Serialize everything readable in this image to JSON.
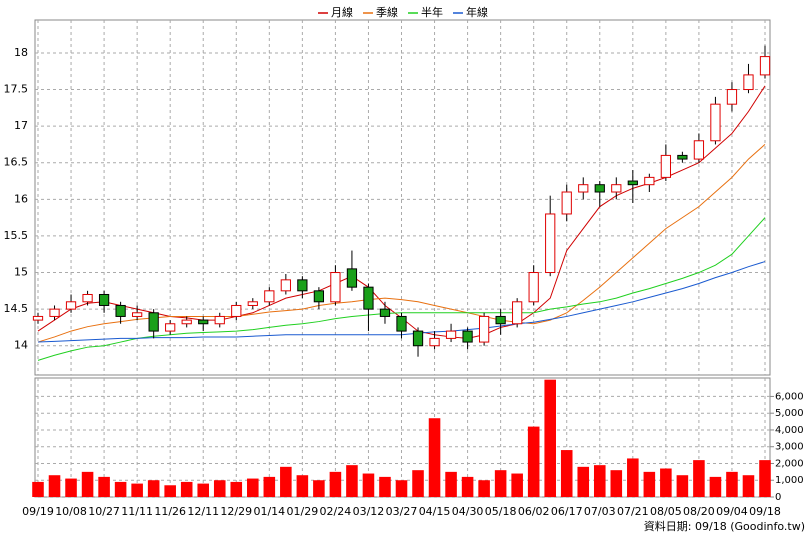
{
  "chart_data": {
    "type": "candlestick",
    "categories": [
      "09/19",
      null,
      "10/08",
      null,
      "10/27",
      null,
      "11/11",
      null,
      "11/26",
      null,
      "12/11",
      null,
      "12/29",
      null,
      "01/14",
      null,
      "01/29",
      null,
      "02/24",
      null,
      "03/12",
      null,
      "03/27",
      null,
      "04/15",
      null,
      "04/30",
      null,
      "05/18",
      null,
      "06/02",
      null,
      "06/17",
      null,
      "07/03",
      null,
      "07/21",
      null,
      "08/05",
      null,
      "08/20",
      null,
      "09/04",
      null,
      "09/18"
    ],
    "open": [
      14.35,
      14.4,
      14.5,
      14.6,
      14.7,
      14.55,
      14.4,
      14.45,
      14.2,
      14.3,
      14.35,
      14.3,
      14.4,
      14.55,
      14.6,
      14.75,
      14.9,
      14.75,
      14.6,
      15.05,
      14.8,
      14.5,
      14.4,
      14.2,
      14.0,
      14.1,
      14.2,
      14.05,
      14.4,
      14.3,
      14.6,
      15.0,
      15.8,
      16.1,
      16.2,
      16.1,
      16.25,
      16.2,
      16.3,
      16.6,
      16.55,
      16.8,
      17.3,
      17.5,
      17.7
    ],
    "high": [
      14.45,
      14.55,
      14.7,
      14.75,
      14.75,
      14.6,
      14.55,
      14.5,
      14.35,
      14.4,
      14.4,
      14.45,
      14.6,
      14.65,
      14.8,
      14.98,
      14.95,
      14.8,
      15.1,
      15.3,
      14.85,
      14.6,
      14.45,
      14.25,
      14.2,
      14.3,
      14.25,
      14.45,
      14.5,
      14.65,
      15.1,
      16.05,
      16.2,
      16.3,
      16.25,
      16.3,
      16.4,
      16.35,
      16.75,
      16.65,
      16.9,
      17.4,
      17.6,
      17.85,
      18.1
    ],
    "low": [
      14.3,
      14.35,
      14.45,
      14.55,
      14.45,
      14.3,
      14.35,
      14.1,
      14.15,
      14.25,
      14.2,
      14.25,
      14.35,
      14.5,
      14.55,
      14.7,
      14.65,
      14.5,
      14.55,
      14.75,
      14.2,
      14.3,
      14.1,
      13.85,
      13.95,
      14.05,
      13.95,
      14.0,
      14.15,
      14.25,
      14.55,
      14.95,
      15.7,
      16.0,
      15.9,
      16.0,
      15.95,
      16.1,
      16.25,
      16.5,
      16.5,
      16.75,
      17.2,
      17.45,
      17.65
    ],
    "close": [
      14.4,
      14.5,
      14.6,
      14.7,
      14.55,
      14.4,
      14.45,
      14.2,
      14.3,
      14.35,
      14.3,
      14.4,
      14.55,
      14.6,
      14.75,
      14.9,
      14.75,
      14.6,
      15.0,
      14.8,
      14.5,
      14.4,
      14.2,
      14.0,
      14.1,
      14.2,
      14.05,
      14.4,
      14.3,
      14.6,
      15.0,
      15.8,
      16.1,
      16.2,
      16.1,
      16.2,
      16.2,
      16.3,
      16.6,
      16.55,
      16.8,
      17.3,
      17.5,
      17.7,
      17.95
    ],
    "volume": [
      900,
      1300,
      1100,
      1500,
      1200,
      900,
      800,
      1000,
      700,
      900,
      800,
      1000,
      900,
      1100,
      1200,
      1800,
      1300,
      1000,
      1500,
      1900,
      1400,
      1200,
      1000,
      1600,
      4700,
      1500,
      1200,
      1000,
      1600,
      1400,
      4200,
      7000,
      2800,
      1800,
      1900,
      1600,
      2300,
      1500,
      1700,
      1300,
      2200,
      1200,
      1500,
      1300,
      2200
    ],
    "up_color": "#e00000",
    "down_color": "#1aa01a",
    "volume_color": "#ff0000",
    "moving_averages": [
      {
        "name": "月線",
        "color": "#d00000",
        "values": [
          14.2,
          14.35,
          14.5,
          14.58,
          14.6,
          14.55,
          14.5,
          14.45,
          14.4,
          14.38,
          14.35,
          14.35,
          14.4,
          14.45,
          14.55,
          14.65,
          14.7,
          14.75,
          14.85,
          14.95,
          14.8,
          14.55,
          14.38,
          14.2,
          14.15,
          14.12,
          14.1,
          14.15,
          14.25,
          14.3,
          14.45,
          14.65,
          15.3,
          15.6,
          15.9,
          16.05,
          16.15,
          16.22,
          16.3,
          16.4,
          16.5,
          16.7,
          16.9,
          17.2,
          17.55
        ]
      },
      {
        "name": "季線",
        "color": "#e87010",
        "values": [
          14.05,
          14.12,
          14.2,
          14.26,
          14.3,
          14.33,
          14.36,
          14.38,
          14.4,
          14.4,
          14.4,
          14.4,
          14.4,
          14.43,
          14.46,
          14.48,
          14.5,
          14.55,
          14.58,
          14.6,
          14.63,
          14.65,
          14.63,
          14.6,
          14.55,
          14.5,
          14.45,
          14.4,
          14.35,
          14.32,
          14.3,
          14.35,
          14.45,
          14.62,
          14.8,
          15.0,
          15.2,
          15.4,
          15.6,
          15.75,
          15.9,
          16.1,
          16.3,
          16.55,
          16.75
        ]
      },
      {
        "name": "半年",
        "color": "#20d020",
        "values": [
          13.8,
          13.87,
          13.93,
          13.98,
          14.0,
          14.05,
          14.1,
          14.13,
          14.15,
          14.17,
          14.18,
          14.19,
          14.2,
          14.22,
          14.25,
          14.28,
          14.3,
          14.33,
          14.37,
          14.4,
          14.42,
          14.44,
          14.45,
          14.45,
          14.45,
          14.45,
          14.45,
          14.45,
          14.45,
          14.45,
          14.45,
          14.5,
          14.53,
          14.57,
          14.6,
          14.65,
          14.72,
          14.78,
          14.85,
          14.92,
          15.0,
          15.1,
          15.25,
          15.5,
          15.75
        ]
      },
      {
        "name": "年線",
        "color": "#1a5ad0",
        "values": [
          14.05,
          14.06,
          14.07,
          14.08,
          14.09,
          14.1,
          14.1,
          14.11,
          14.11,
          14.11,
          14.12,
          14.12,
          14.12,
          14.13,
          14.14,
          14.15,
          14.15,
          14.15,
          14.15,
          14.15,
          14.15,
          14.15,
          14.15,
          14.17,
          14.19,
          14.2,
          14.22,
          14.24,
          14.27,
          14.3,
          14.32,
          14.36,
          14.4,
          14.45,
          14.5,
          14.55,
          14.6,
          14.66,
          14.72,
          14.78,
          14.85,
          14.93,
          15.0,
          15.08,
          15.15
        ]
      }
    ],
    "ylim": [
      13.6,
      18.45
    ],
    "yticks": [
      14,
      14.5,
      15,
      15.5,
      16,
      16.5,
      17,
      17.5,
      18
    ],
    "volume_ylim": [
      0,
      7100
    ],
    "volume_yticks": [
      0,
      {
        "value": 1000,
        "label": "1,000"
      },
      {
        "value": 2000,
        "label": "2,000"
      },
      {
        "value": 3000,
        "label": "3,000"
      },
      {
        "value": 4000,
        "label": "4,000"
      },
      {
        "value": 5000,
        "label": "5,000"
      },
      {
        "value": 6000,
        "label": "6,000"
      }
    ],
    "grid": true,
    "footnote": "資料日期: 09/18 (Goodinfo.tw)"
  }
}
